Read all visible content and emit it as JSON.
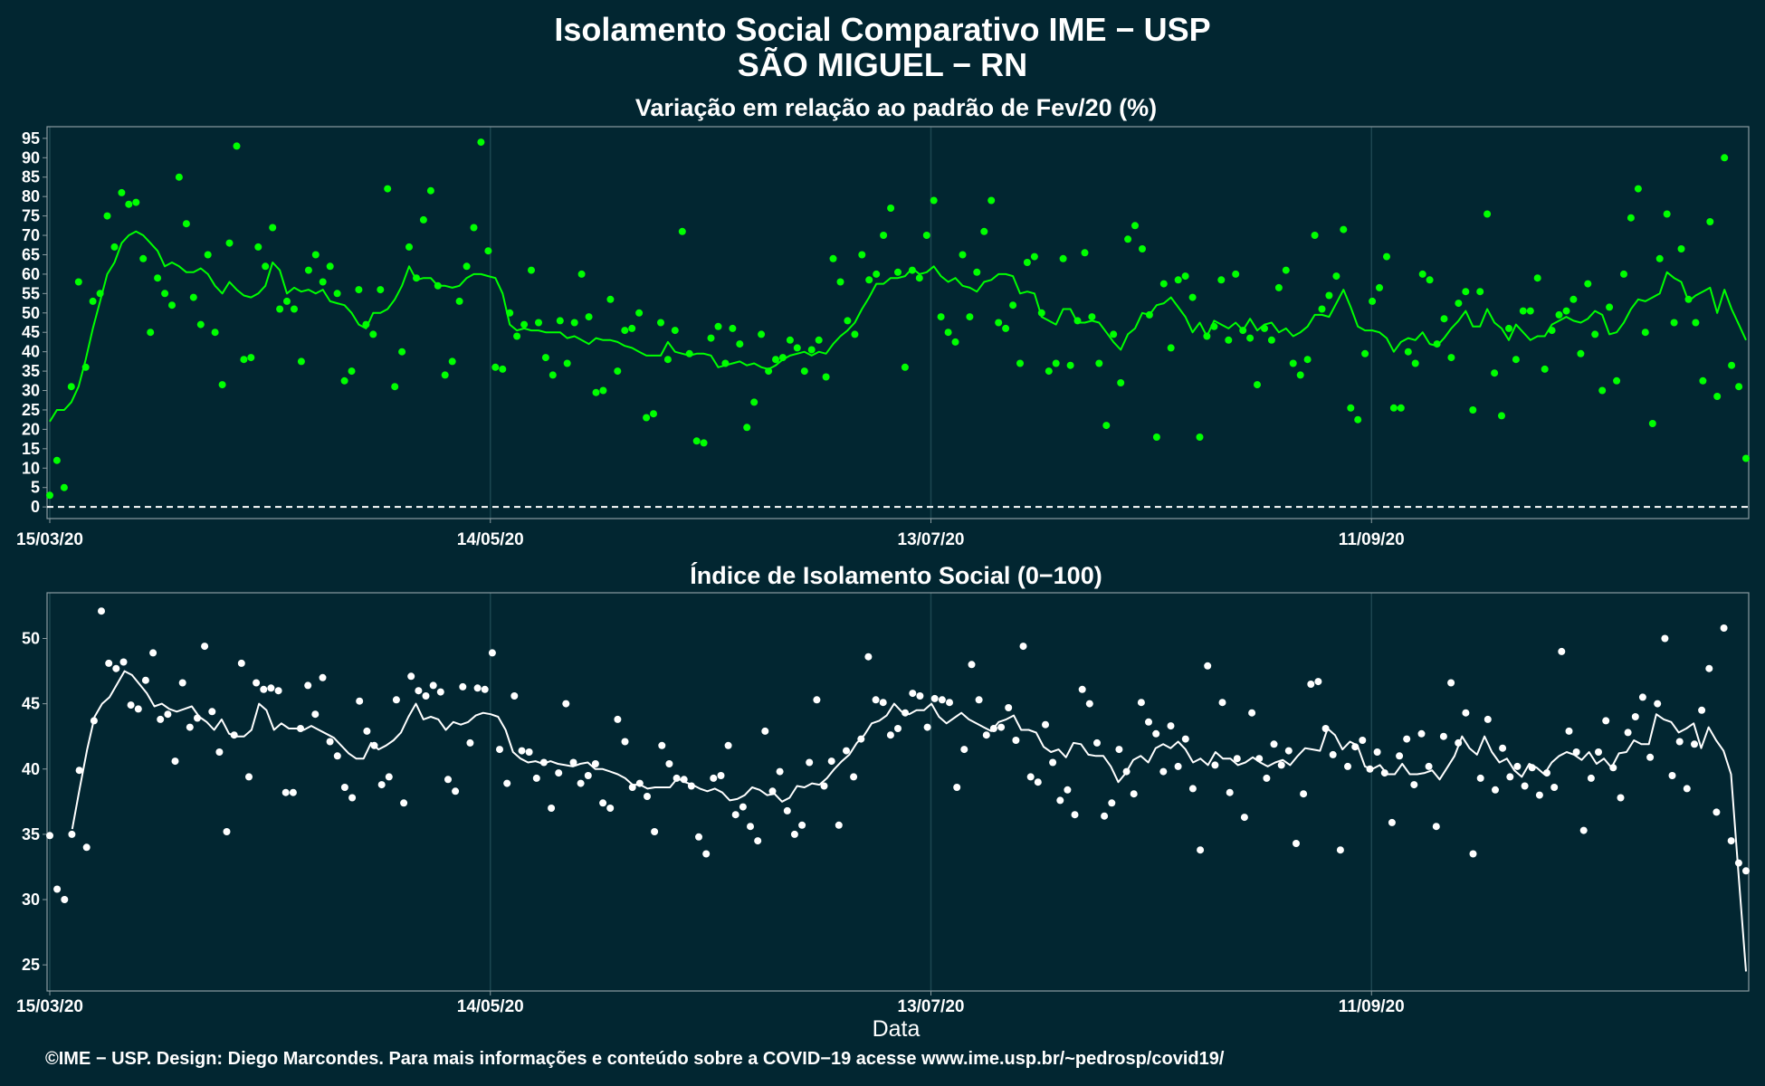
{
  "page": {
    "title_line1": "Isolamento Social Comparativo IME − USP",
    "title_line2": "SÃO MIGUEL − RN",
    "xlabel": "Data",
    "caption": "©IME − USP. Design: Diego Marcondes. Para mais informações e conteúdo sobre a COVID−19 acesse www.ime.usp.br/~pedrosp/covid19/"
  },
  "colors": {
    "background": "#022631",
    "panel_border": "#8a9ba0",
    "gridline": "#1d4651",
    "top_series": "#00ff00",
    "bottom_series": "#ffffff"
  },
  "chart_data": [
    {
      "type": "scatter",
      "title": "Variação em relação ao padrão de Fev/20 (%)",
      "x_start": "2020-03-15",
      "x_end": "2020-11-01",
      "x_ticks": [
        "15/03/20",
        "14/05/20",
        "13/07/20",
        "11/09/20"
      ],
      "x_tick_dates": [
        "2020-03-15",
        "2020-05-14",
        "2020-07-13",
        "2020-09-11"
      ],
      "ylim": [
        -3,
        98
      ],
      "y_ticks": [
        0,
        5,
        10,
        15,
        20,
        25,
        30,
        35,
        40,
        45,
        50,
        55,
        60,
        65,
        70,
        75,
        80,
        85,
        90,
        95
      ],
      "reference_line": 0,
      "grid": true,
      "series": [
        {
          "kind": "daily_points",
          "values": [
            3,
            12,
            5,
            31,
            58,
            36,
            53,
            55,
            75,
            67,
            81,
            78,
            78.5,
            64,
            45,
            59,
            55,
            52,
            85,
            73,
            54,
            47,
            65,
            45,
            31.5,
            68,
            93,
            38,
            38.5,
            67,
            62,
            72,
            51,
            53,
            51,
            37.5,
            61,
            65,
            58,
            62,
            55,
            32.5,
            35,
            56,
            47,
            44.5,
            56,
            82,
            31,
            40,
            67,
            59,
            74,
            81.5,
            57,
            34,
            37.5,
            53,
            62,
            72,
            94,
            66,
            36,
            35.5,
            50,
            44,
            47,
            61,
            47.5,
            38.5,
            34,
            48,
            37,
            47.5,
            60,
            49,
            29.5,
            30,
            53.5,
            35,
            45.5,
            46,
            50,
            23,
            24,
            47.5,
            38,
            45.5,
            71,
            39.5,
            17,
            16.5,
            43.5,
            46.5,
            37,
            46,
            42,
            20.5,
            27,
            44.5,
            35,
            38,
            38.5,
            43,
            41,
            35,
            40.5,
            43,
            33.5,
            64,
            58,
            48,
            44.5,
            65,
            58.5,
            60,
            70,
            77,
            60.5,
            36,
            61,
            59,
            70,
            79,
            49,
            45,
            42.5,
            65,
            49,
            60.5,
            71,
            79,
            47.5,
            46,
            52,
            37,
            63,
            64.5,
            50,
            35,
            37,
            64,
            36.5,
            48,
            65.5,
            49,
            37,
            21,
            44.5,
            32,
            69,
            72.5,
            66.5,
            49.5,
            18,
            57.5,
            41,
            58.5,
            59.5,
            54,
            18,
            44,
            46.5,
            58.5,
            43,
            60,
            45.5,
            43.5,
            31.5,
            46,
            43,
            56.5,
            61,
            37,
            34,
            38,
            70,
            51,
            54.5,
            59.5,
            71.5,
            25.5,
            22.5,
            39.5,
            53,
            56.5,
            64.5,
            25.5,
            25.5,
            40,
            37,
            60,
            58.5,
            42,
            48.5,
            38.5,
            52.5,
            55.5,
            25,
            55.5,
            75.5,
            34.5,
            23.5,
            46,
            38,
            50.5,
            50.5,
            59,
            35.5,
            45.5,
            49.5,
            50.5,
            53.5,
            39.5,
            57.5,
            44.5,
            30,
            51.5,
            32.5,
            60,
            74.5,
            82,
            45,
            21.5,
            64,
            75.5,
            47.5,
            66.5,
            53.5,
            47.5,
            32.5,
            73.5,
            28.5,
            90,
            36.5,
            31,
            12.5
          ]
        },
        {
          "kind": "moving_average",
          "values": [
            22,
            25,
            25,
            27,
            31,
            38,
            46,
            53,
            60,
            63,
            68,
            70,
            71,
            70,
            68,
            66,
            62,
            63,
            62,
            60.5,
            60.5,
            61.5,
            60,
            57,
            55,
            58,
            56,
            54.5,
            54,
            55,
            57,
            63,
            61,
            55,
            56.5,
            55.5,
            56,
            55,
            56,
            53,
            52.5,
            52,
            50,
            47,
            46,
            50,
            50,
            51,
            53.5,
            57,
            62,
            58.5,
            59,
            59,
            57,
            57,
            56.5,
            57,
            59,
            60,
            60,
            59.5,
            59,
            55,
            47,
            45.5,
            46,
            45.5,
            45.5,
            45,
            45,
            45,
            43.5,
            44,
            43,
            42,
            43.5,
            43,
            43,
            42.5,
            41.5,
            41,
            40,
            39,
            39,
            39,
            42.5,
            40,
            39.5,
            39,
            39.5,
            39.5,
            39,
            36,
            36.5,
            37,
            37.5,
            36.5,
            37,
            36,
            35.5,
            36.5,
            38,
            39,
            39.5,
            40,
            39,
            40,
            39.5,
            42,
            44,
            45.5,
            47.5,
            51,
            54,
            57.5,
            57.5,
            59,
            59,
            59.5,
            61.5,
            60,
            60.5,
            62,
            59.5,
            58,
            59,
            57,
            56.5,
            55.5,
            58,
            58.5,
            60,
            60,
            59.5,
            55,
            55.5,
            55,
            49,
            48,
            47,
            51,
            51,
            47.5,
            47.5,
            48,
            47.5,
            45,
            42.5,
            40.5,
            44.5,
            46,
            50,
            49.5,
            52,
            52.5,
            54,
            51.5,
            49,
            45,
            47.5,
            44,
            48,
            47,
            46,
            47.5,
            45.5,
            48.5,
            45.5,
            47,
            47.5,
            45,
            46,
            44,
            45,
            46.5,
            49.5,
            49.5,
            49,
            52.5,
            56,
            51.5,
            46.5,
            45.5,
            45.5,
            45,
            43.5,
            40,
            42.5,
            43.5,
            43,
            45,
            42,
            41.5,
            43.5,
            46,
            48,
            50.5,
            46.5,
            46.5,
            51,
            47.5,
            46,
            43,
            47,
            45,
            43,
            44,
            44,
            47,
            48,
            49,
            48,
            47.5,
            48.5,
            50.5,
            49.5,
            44.5,
            45,
            47.5,
            51,
            53.5,
            53,
            54,
            55,
            60.5,
            59,
            58,
            53,
            54.5,
            55.5,
            56.5,
            50,
            56,
            51,
            47,
            43
          ]
        }
      ]
    },
    {
      "type": "scatter",
      "title": "Índice de Isolamento Social (0−100)",
      "x_start": "2020-03-15",
      "x_end": "2020-11-01",
      "x_ticks": [
        "15/03/20",
        "14/05/20",
        "13/07/20",
        "11/09/20"
      ],
      "x_tick_dates": [
        "2020-03-15",
        "2020-05-14",
        "2020-07-13",
        "2020-09-11"
      ],
      "ylim": [
        23,
        53.5
      ],
      "y_ticks": [
        25,
        30,
        35,
        40,
        45,
        50
      ],
      "grid": true,
      "series": [
        {
          "kind": "daily_points",
          "values": [
            34.9,
            30.8,
            30,
            35,
            39.9,
            34,
            43.7,
            52.1,
            48.1,
            47.7,
            48.2,
            44.9,
            44.6,
            46.8,
            48.9,
            43.8,
            44.2,
            40.6,
            46.6,
            43.2,
            43.9,
            49.4,
            44.4,
            41.3,
            35.2,
            42.6,
            48.1,
            39.4,
            46.6,
            46.1,
            46.2,
            46,
            38.2,
            38.2,
            43.1,
            46.4,
            44.2,
            47,
            42.1,
            41,
            38.6,
            37.8,
            45.2,
            42.9,
            41.8,
            38.8,
            39.4,
            45.3,
            37.4,
            47.1,
            46,
            45.6,
            46.4,
            45.9,
            39.2,
            38.3,
            46.3,
            42,
            46.2,
            46.1,
            48.9,
            41.5,
            38.9,
            45.6,
            41.4,
            41.3,
            39.3,
            40.5,
            37,
            39.7,
            45,
            40.5,
            38.9,
            39.5,
            40.4,
            37.4,
            37,
            43.8,
            42.1,
            38.6,
            38.9,
            37.9,
            35.2,
            41.8,
            40.4,
            39.3,
            39.2,
            38.7,
            34.8,
            33.5,
            39.3,
            39.5,
            41.8,
            36.5,
            37.1,
            35.6,
            34.5,
            42.9,
            38.3,
            39.8,
            36.8,
            35,
            35.7,
            40.5,
            45.3,
            38.7,
            40.6,
            35.7,
            41.4,
            39.4,
            42.3,
            48.6,
            45.3,
            45.1,
            42.6,
            43.1,
            44.3,
            45.8,
            45.6,
            43.2,
            45.4,
            45.3,
            45.1,
            38.6,
            41.5,
            48,
            45.3,
            42.6,
            43.1,
            43.2,
            44.7,
            42.2,
            49.4,
            39.4,
            39,
            43.4,
            40.5,
            37.6,
            38.4,
            36.5,
            46.1,
            45,
            42,
            36.4,
            37.4,
            41.5,
            39.8,
            38.1,
            45.1,
            43.6,
            42.7,
            39.8,
            43.3,
            40.2,
            42.3,
            38.5,
            33.8,
            47.9,
            40.3,
            45.1,
            38.2,
            40.8,
            36.3,
            44.3,
            40.8,
            39.3,
            41.9,
            40.3,
            41.4,
            34.3,
            38.1,
            46.5,
            46.7,
            43.1,
            41.1,
            33.8,
            40.2,
            41.7,
            42.2,
            40,
            41.3,
            39.7,
            35.9,
            41,
            42.3,
            38.8,
            42.7,
            40.2,
            35.6,
            42.5,
            46.6,
            42,
            44.3,
            33.5,
            39.3,
            43.8,
            38.4,
            41.6,
            39.4,
            40.2,
            38.7,
            40.1,
            38,
            39.7,
            38.6,
            49,
            42.9,
            41.3,
            35.3,
            39.3,
            41.3,
            43.7,
            40.1,
            37.8,
            42.8,
            44,
            45.5,
            40.9,
            45,
            50,
            39.5,
            42.1,
            38.5,
            41.9,
            44.5,
            47.7,
            36.7,
            50.8,
            34.5,
            32.8,
            32.2
          ]
        },
        {
          "kind": "moving_average",
          "values": [
            null,
            null,
            null,
            35.4,
            38.5,
            41.5,
            44,
            45,
            45.5,
            46.5,
            47.5,
            47.2,
            46.5,
            45.8,
            44.8,
            45,
            44.6,
            44.4,
            44.6,
            44.8,
            44,
            43.6,
            43,
            43.8,
            42.7,
            42.5,
            42.5,
            43,
            45,
            44.5,
            43,
            43.5,
            43.1,
            43.1,
            43,
            43.3,
            43,
            42.7,
            42.4,
            41.8,
            41.2,
            40.8,
            40.8,
            42,
            41.5,
            41.8,
            42.2,
            42.8,
            44,
            45,
            43.8,
            44,
            43.8,
            43,
            43.6,
            43.4,
            43.6,
            44.1,
            44.3,
            44.2,
            44,
            43,
            41.3,
            40.8,
            40.5,
            40.6,
            40.4,
            40.6,
            40.4,
            40.3,
            40.2,
            40.4,
            40.5,
            40,
            40,
            39.8,
            39.6,
            39.3,
            38.8,
            38.8,
            38.5,
            38.6,
            38.6,
            38.6,
            39.3,
            39,
            38.8,
            38.5,
            38.3,
            38.5,
            38.2,
            37.6,
            37.7,
            38,
            38.6,
            38.4,
            38,
            38.1,
            37.5,
            37.8,
            38.7,
            38.6,
            38.9,
            38.8,
            39.3,
            40,
            40.6,
            41.1,
            42,
            42.6,
            43.5,
            43.7,
            44.1,
            45,
            44.4,
            44.2,
            44.5,
            44.5,
            45,
            44,
            43.5,
            43.9,
            44.3,
            43.8,
            43.5,
            43.2,
            42.9,
            43.6,
            43.8,
            44.1,
            43,
            43,
            42.8,
            41.7,
            41.3,
            41.5,
            40.9,
            42,
            41.9,
            41.1,
            41,
            41,
            40.2,
            39,
            39.7,
            40.7,
            41,
            40.5,
            41.6,
            41.9,
            41.6,
            42.1,
            41.5,
            40.5,
            40.8,
            40.3,
            41.3,
            40.8,
            40.8,
            40.3,
            40.5,
            40.9,
            40.5,
            40.2,
            40.5,
            40.7,
            40.3,
            41,
            41.6,
            41.5,
            41.4,
            43.1,
            42.6,
            41.5,
            42.1,
            41.8,
            40.2,
            40,
            40.3,
            39.6,
            39.6,
            40.4,
            39.6,
            39.6,
            39.7,
            39.9,
            39.2,
            40.1,
            41,
            42.5,
            41.6,
            41.1,
            42.5,
            41.3,
            40.5,
            40.8,
            39.9,
            39.4,
            40.4,
            40.1,
            39.6,
            40.5,
            41,
            41.3,
            41.1,
            40.7,
            41.3,
            40.4,
            40.8,
            40.1,
            41.2,
            41.3,
            42.2,
            41.9,
            41.9,
            44.2,
            43.8,
            43.6,
            42.8,
            43.1,
            43.5,
            41.6,
            43.2,
            42.2,
            41.4,
            39.6,
            32,
            24.5
          ]
        }
      ]
    }
  ]
}
